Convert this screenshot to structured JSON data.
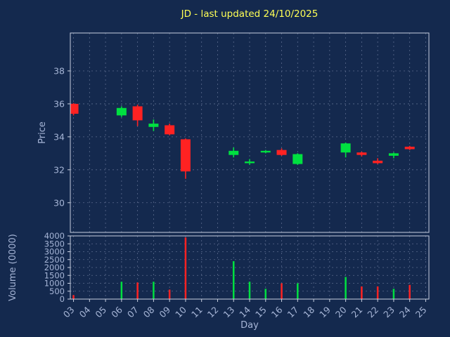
{
  "title": "JD - last updated 24/10/2025",
  "colors": {
    "background": "#14294e",
    "title": "#ffff55",
    "tick_label": "#a6b5d6",
    "axis_label": "#a6b5d6",
    "grid": "#5a6a8c",
    "spine": "#c8d0e0",
    "up": "#00e040",
    "down": "#ff2222"
  },
  "chart_data": {
    "type": "candlestick_with_volume",
    "title": "JD - last updated 24/10/2025",
    "xlabel": "Day",
    "price_ylabel": "Price",
    "volume_ylabel": "Volume (0000)",
    "grid": true,
    "xlim": [
      2.8,
      25.2
    ],
    "price_ylim": [
      28.2,
      40.3
    ],
    "volume_ylim": [
      0,
      4000
    ],
    "x_ticks": [
      "03",
      "04",
      "05",
      "06",
      "07",
      "08",
      "09",
      "10",
      "11",
      "12",
      "13",
      "14",
      "15",
      "16",
      "17",
      "18",
      "19",
      "20",
      "21",
      "22",
      "23",
      "24",
      "25"
    ],
    "price_ticks": [
      30,
      32,
      34,
      36,
      38
    ],
    "volume_ticks": [
      0,
      500,
      1000,
      1500,
      2000,
      2500,
      3000,
      3500,
      4000
    ],
    "candles": [
      {
        "day": 3,
        "open": 36.0,
        "high": 36.05,
        "low": 35.3,
        "close": 35.4,
        "volume": 250
      },
      {
        "day": 6,
        "open": 35.3,
        "high": 35.85,
        "low": 35.2,
        "close": 35.75,
        "volume": 1100
      },
      {
        "day": 7,
        "open": 35.85,
        "high": 35.95,
        "low": 34.65,
        "close": 35.0,
        "volume": 1050
      },
      {
        "day": 8,
        "open": 34.6,
        "high": 35.05,
        "low": 34.35,
        "close": 34.8,
        "volume": 1100
      },
      {
        "day": 9,
        "open": 34.7,
        "high": 34.8,
        "low": 34.1,
        "close": 34.15,
        "volume": 600
      },
      {
        "day": 10,
        "open": 33.85,
        "high": 33.9,
        "low": 31.45,
        "close": 31.9,
        "volume": 3900
      },
      {
        "day": 13,
        "open": 32.9,
        "high": 33.35,
        "low": 32.75,
        "close": 33.15,
        "volume": 2400
      },
      {
        "day": 14,
        "open": 32.4,
        "high": 32.65,
        "low": 32.3,
        "close": 32.5,
        "volume": 1100
      },
      {
        "day": 15,
        "open": 33.05,
        "high": 33.2,
        "low": 33.0,
        "close": 33.15,
        "volume": 650
      },
      {
        "day": 16,
        "open": 33.2,
        "high": 33.3,
        "low": 32.85,
        "close": 32.9,
        "volume": 1000
      },
      {
        "day": 17,
        "open": 32.35,
        "high": 33.0,
        "low": 32.3,
        "close": 32.95,
        "volume": 1000
      },
      {
        "day": 20,
        "open": 33.05,
        "high": 33.65,
        "low": 32.75,
        "close": 33.6,
        "volume": 1400
      },
      {
        "day": 21,
        "open": 33.05,
        "high": 33.1,
        "low": 32.8,
        "close": 32.9,
        "volume": 800
      },
      {
        "day": 22,
        "open": 32.55,
        "high": 32.7,
        "low": 32.35,
        "close": 32.4,
        "volume": 800
      },
      {
        "day": 23,
        "open": 32.85,
        "high": 33.05,
        "low": 32.7,
        "close": 33.0,
        "volume": 650
      },
      {
        "day": 24,
        "open": 33.4,
        "high": 33.45,
        "low": 33.2,
        "close": 33.25,
        "volume": 900
      }
    ]
  }
}
